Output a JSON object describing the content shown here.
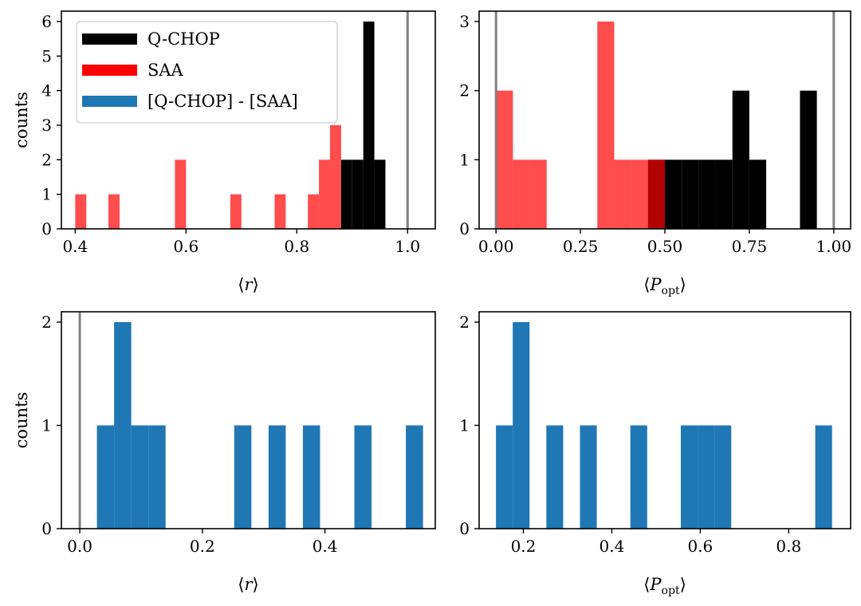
{
  "colors": {
    "qchop": "#000000",
    "saa": "#ff0000",
    "diff": "#1f77b4",
    "refline": "#808080"
  },
  "legend": {
    "entries": [
      {
        "label": "Q-CHOP",
        "color": "#000000"
      },
      {
        "label": "SAA",
        "color": "#ff0000"
      },
      {
        "label": "[Q-CHOP] - [SAA]",
        "color": "#1f77b4"
      }
    ]
  },
  "chart_data": [
    {
      "type": "histogram",
      "panel": "top-left",
      "xlabel": "⟨r⟩",
      "ylabel": "counts",
      "xlim": [
        0.375,
        1.05
      ],
      "ylim": [
        0,
        6.3
      ],
      "xticks": [
        0.4,
        0.6,
        0.8,
        1.0
      ],
      "xtick_labels": [
        "0.4",
        "0.6",
        "0.8",
        "1.0"
      ],
      "yticks": [
        0,
        1,
        2,
        3,
        4,
        5,
        6
      ],
      "ytick_labels": [
        "0",
        "1",
        "2",
        "3",
        "4",
        "5",
        "6"
      ],
      "ref_lines": [
        1.0
      ],
      "series": [
        {
          "name": "SAA",
          "alpha": 0.7,
          "bins": [
            {
              "x0": 0.4,
              "x1": 0.42,
              "count": 1
            },
            {
              "x0": 0.46,
              "x1": 0.48,
              "count": 1
            },
            {
              "x0": 0.58,
              "x1": 0.6,
              "count": 2
            },
            {
              "x0": 0.68,
              "x1": 0.7,
              "count": 1
            },
            {
              "x0": 0.76,
              "x1": 0.78,
              "count": 1
            },
            {
              "x0": 0.82,
              "x1": 0.84,
              "count": 1
            },
            {
              "x0": 0.84,
              "x1": 0.86,
              "count": 2
            },
            {
              "x0": 0.86,
              "x1": 0.88,
              "count": 3
            }
          ]
        },
        {
          "name": "Q-CHOP",
          "alpha": 1,
          "bins": [
            {
              "x0": 0.88,
              "x1": 0.9,
              "count": 2
            },
            {
              "x0": 0.9,
              "x1": 0.92,
              "count": 2
            },
            {
              "x0": 0.92,
              "x1": 0.94,
              "count": 6
            },
            {
              "x0": 0.94,
              "x1": 0.96,
              "count": 2
            }
          ]
        }
      ]
    },
    {
      "type": "histogram",
      "panel": "top-right",
      "xlabel": "⟨P_opt⟩",
      "ylabel": "",
      "xlim": [
        -0.05,
        1.05
      ],
      "ylim": [
        0,
        3.15
      ],
      "xticks": [
        0.0,
        0.25,
        0.5,
        0.75,
        1.0
      ],
      "xtick_labels": [
        "0.00",
        "0.25",
        "0.50",
        "0.75",
        "1.00"
      ],
      "yticks": [
        0,
        1,
        2,
        3
      ],
      "ytick_labels": [
        "0",
        "1",
        "2",
        "3"
      ],
      "ref_lines": [
        0.0,
        1.0
      ],
      "series": [
        {
          "name": "Q-CHOP",
          "alpha": 1,
          "bins": [
            {
              "x0": 0.45,
              "x1": 0.5,
              "count": 1
            },
            {
              "x0": 0.5,
              "x1": 0.55,
              "count": 1
            },
            {
              "x0": 0.55,
              "x1": 0.6,
              "count": 1
            },
            {
              "x0": 0.6,
              "x1": 0.65,
              "count": 1
            },
            {
              "x0": 0.65,
              "x1": 0.7,
              "count": 1
            },
            {
              "x0": 0.7,
              "x1": 0.75,
              "count": 2
            },
            {
              "x0": 0.75,
              "x1": 0.8,
              "count": 1
            },
            {
              "x0": 0.9,
              "x1": 0.95,
              "count": 2
            }
          ]
        },
        {
          "name": "SAA",
          "alpha": 0.7,
          "bins": [
            {
              "x0": 0.0,
              "x1": 0.05,
              "count": 2
            },
            {
              "x0": 0.05,
              "x1": 0.1,
              "count": 1
            },
            {
              "x0": 0.1,
              "x1": 0.15,
              "count": 1
            },
            {
              "x0": 0.3,
              "x1": 0.35,
              "count": 3
            },
            {
              "x0": 0.35,
              "x1": 0.4,
              "count": 1
            },
            {
              "x0": 0.4,
              "x1": 0.45,
              "count": 1
            },
            {
              "x0": 0.45,
              "x1": 0.5,
              "count": 1
            }
          ]
        }
      ]
    },
    {
      "type": "histogram",
      "panel": "bottom-left",
      "xlabel": "⟨r⟩",
      "ylabel": "counts",
      "xlim": [
        -0.03,
        0.58
      ],
      "ylim": [
        0,
        2.1
      ],
      "xticks": [
        0.0,
        0.2,
        0.4
      ],
      "xtick_labels": [
        "0.0",
        "0.2",
        "0.4"
      ],
      "yticks": [
        0,
        1,
        2
      ],
      "ytick_labels": [
        "0",
        "1",
        "2"
      ],
      "ref_lines": [
        0.0
      ],
      "series": [
        {
          "name": "[Q-CHOP] - [SAA]",
          "alpha": 1,
          "bins": [
            {
              "x0": 0.028,
              "x1": 0.056,
              "count": 1
            },
            {
              "x0": 0.056,
              "x1": 0.084,
              "count": 2
            },
            {
              "x0": 0.084,
              "x1": 0.112,
              "count": 1
            },
            {
              "x0": 0.112,
              "x1": 0.14,
              "count": 1
            },
            {
              "x0": 0.252,
              "x1": 0.28,
              "count": 1
            },
            {
              "x0": 0.308,
              "x1": 0.336,
              "count": 1
            },
            {
              "x0": 0.364,
              "x1": 0.392,
              "count": 1
            },
            {
              "x0": 0.448,
              "x1": 0.476,
              "count": 1
            },
            {
              "x0": 0.532,
              "x1": 0.56,
              "count": 1
            }
          ]
        }
      ]
    },
    {
      "type": "histogram",
      "panel": "bottom-right",
      "xlabel": "⟨P_opt⟩",
      "ylabel": "",
      "xlim": [
        0.1,
        0.94
      ],
      "ylim": [
        0,
        2.1
      ],
      "xticks": [
        0.2,
        0.4,
        0.6,
        0.8
      ],
      "xtick_labels": [
        "0.2",
        "0.4",
        "0.6",
        "0.8"
      ],
      "yticks": [
        0,
        1,
        2
      ],
      "ytick_labels": [
        "0",
        "1",
        "2"
      ],
      "ref_lines": [],
      "series": [
        {
          "name": "[Q-CHOP] - [SAA]",
          "alpha": 1,
          "bins": [
            {
              "x0": 0.138,
              "x1": 0.176,
              "count": 1
            },
            {
              "x0": 0.176,
              "x1": 0.214,
              "count": 2
            },
            {
              "x0": 0.252,
              "x1": 0.29,
              "count": 1
            },
            {
              "x0": 0.328,
              "x1": 0.366,
              "count": 1
            },
            {
              "x0": 0.442,
              "x1": 0.48,
              "count": 1
            },
            {
              "x0": 0.556,
              "x1": 0.594,
              "count": 1
            },
            {
              "x0": 0.594,
              "x1": 0.632,
              "count": 1
            },
            {
              "x0": 0.632,
              "x1": 0.67,
              "count": 1
            },
            {
              "x0": 0.86,
              "x1": 0.898,
              "count": 1
            }
          ]
        }
      ]
    }
  ]
}
